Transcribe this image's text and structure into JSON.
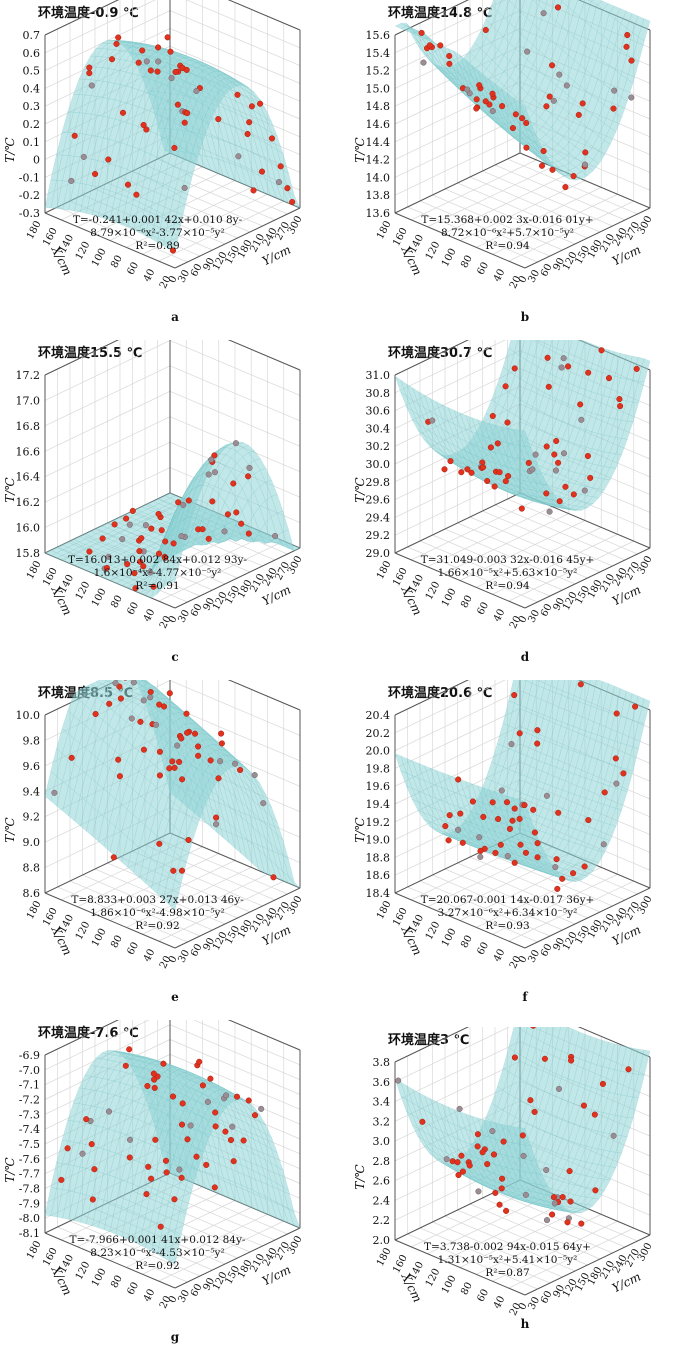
{
  "figure": {
    "axis_labels": {
      "z": "T/℃",
      "x": "X/cm",
      "y": "Y/cm"
    },
    "x_ticks": [
      "20",
      "40",
      "60",
      "80",
      "100",
      "120",
      "140",
      "160",
      "180"
    ],
    "y_ticks": [
      "0",
      "30",
      "60",
      "90",
      "120",
      "150",
      "180",
      "210",
      "240",
      "270",
      "300"
    ],
    "surface_color": "#8fd3d6",
    "point_color": "#e0321e"
  },
  "chart_data": [
    {
      "panel": "a",
      "type": "scatter",
      "title": "环境温度-0.9 ℃",
      "zlabel": "T/℃",
      "xlabel": "X/cm",
      "ylabel": "Y/cm",
      "zlim": [
        -0.3,
        0.7
      ],
      "xlim": [
        20,
        180
      ],
      "ylim": [
        0,
        300
      ],
      "z_ticks": [
        "0.7",
        "0.6",
        "0.5",
        "0.4",
        "0.3",
        "0.2",
        "0.1",
        "0",
        "-0.1",
        "-0.2",
        "-0.3"
      ],
      "shape": "dome",
      "equation_line1": "T=-0.241+0.001 42x+0.010 8y-",
      "equation_line2": "8.79×10⁻⁶x²-3.77×10⁻⁵y²",
      "r2": "R²=0.89",
      "sublabel": "a",
      "coefficients": {
        "c0": -0.241,
        "cx": 0.00142,
        "cy": 0.0108,
        "cx2": -8.79e-06,
        "cy2": -3.77e-05
      }
    },
    {
      "panel": "b",
      "type": "scatter",
      "title": "环境温度14.8 ℃",
      "zlabel": "T/℃",
      "xlabel": "X/cm",
      "ylabel": "Y/cm",
      "zlim": [
        13.6,
        15.6
      ],
      "xlim": [
        20,
        180
      ],
      "ylim": [
        0,
        300
      ],
      "z_ticks": [
        "15.6",
        "15.4",
        "15.2",
        "15.0",
        "14.8",
        "14.6",
        "14.4",
        "14.2",
        "14.0",
        "13.8",
        "13.6"
      ],
      "shape": "bowl",
      "equation_line1": "T=15.368+0.002 3x-0.016 01y+",
      "equation_line2": "8.72×10⁻⁶x²+5.7×10⁻⁵y²",
      "r2": "R²=0.94",
      "sublabel": "b",
      "coefficients": {
        "c0": 15.368,
        "cx": 0.0023,
        "cy": -0.01601,
        "cx2": 8.72e-06,
        "cy2": 5.7e-05
      }
    },
    {
      "panel": "c",
      "type": "scatter",
      "title": "环境温度15.5 ℃",
      "zlabel": "T/℃",
      "xlabel": "X/cm",
      "ylabel": "Y/cm",
      "zlim": [
        15.8,
        17.2
      ],
      "xlim": [
        20,
        180
      ],
      "ylim": [
        0,
        300
      ],
      "z_ticks": [
        "17.2",
        "17.0",
        "16.8",
        "16.6",
        "16.4",
        "16.2",
        "16.0",
        "15.8"
      ],
      "shape": "dome",
      "equation_line1": "T=16.013+0.002 84x+0.012 93y-",
      "equation_line2": "1.6×10⁻⁴x²-4.77×10⁻⁵y²",
      "r2": "R²=0.91",
      "sublabel": "c",
      "coefficients": {
        "c0": 16.013,
        "cx": 0.00284,
        "cy": 0.01293,
        "cx2": -0.00016,
        "cy2": -4.77e-05
      }
    },
    {
      "panel": "d",
      "type": "scatter",
      "title": "环境温度30.7 ℃",
      "zlabel": "T/℃",
      "xlabel": "X/cm",
      "ylabel": "Y/cm",
      "zlim": [
        29.0,
        31.0
      ],
      "xlim": [
        20,
        180
      ],
      "ylim": [
        0,
        300
      ],
      "z_ticks": [
        "31.0",
        "30.8",
        "30.6",
        "30.4",
        "30.2",
        "30.0",
        "29.8",
        "29.6",
        "29.4",
        "29.2",
        "29.0"
      ],
      "shape": "bowl",
      "equation_line1": "T=31.049-0.003 32x-0.016 45y+",
      "equation_line2": "1.66×10⁻⁵x²+5.63×10⁻⁵y²",
      "r2": "R²=0.94",
      "sublabel": "d",
      "coefficients": {
        "c0": 31.049,
        "cx": -0.00332,
        "cy": -0.01645,
        "cx2": 1.66e-05,
        "cy2": 5.63e-05
      }
    },
    {
      "panel": "e",
      "type": "scatter",
      "title": "环境温度8.5 ℃",
      "zlabel": "T/℃",
      "xlabel": "X/cm",
      "ylabel": "Y/cm",
      "zlim": [
        8.6,
        10.0
      ],
      "xlim": [
        20,
        180
      ],
      "ylim": [
        0,
        300
      ],
      "z_ticks": [
        "10.0",
        "9.8",
        "9.6",
        "9.4",
        "9.2",
        "9.0",
        "8.8",
        "8.6"
      ],
      "shape": "dome",
      "equation_line1": "T=8.833+0.003 27x+0.013 46y-",
      "equation_line2": "1.86×10⁻⁶x²-4.98×10⁻⁵y²",
      "r2": "R²=0.92",
      "sublabel": "e",
      "coefficients": {
        "c0": 8.833,
        "cx": 0.00327,
        "cy": 0.01346,
        "cx2": -1.86e-06,
        "cy2": -4.98e-05
      }
    },
    {
      "panel": "f",
      "type": "scatter",
      "title": "环境温度20.6 ℃",
      "zlabel": "T/℃",
      "xlabel": "X/cm",
      "ylabel": "Y/cm",
      "zlim": [
        18.4,
        20.4
      ],
      "xlim": [
        20,
        180
      ],
      "ylim": [
        0,
        300
      ],
      "z_ticks": [
        "20.4",
        "20.2",
        "20.0",
        "19.8",
        "19.6",
        "19.4",
        "19.2",
        "19.0",
        "18.8",
        "18.6",
        "18.4"
      ],
      "shape": "bowl",
      "equation_line1": "T=20.067-0.001 14x-0.017 36y+",
      "equation_line2": "3.27×10⁻⁶x²+6.34×10⁻⁵y²",
      "r2": "R²=0.93",
      "sublabel": "f",
      "coefficients": {
        "c0": 20.067,
        "cx": -0.00114,
        "cy": -0.01736,
        "cx2": 3.27e-06,
        "cy2": 6.34e-05
      }
    },
    {
      "panel": "g",
      "type": "scatter",
      "title": "环境温度-7.6 ℃",
      "zlabel": "T/℃",
      "xlabel": "X/cm",
      "ylabel": "Y/cm",
      "zlim": [
        -8.1,
        -6.9
      ],
      "xlim": [
        20,
        180
      ],
      "ylim": [
        0,
        300
      ],
      "z_ticks": [
        "-6.9",
        "-7.0",
        "-7.1",
        "-7.2",
        "-7.3",
        "-7.4",
        "-7.5",
        "-7.6",
        "-7.7",
        "-7.8",
        "-7.9",
        "-8.0",
        "-8.1"
      ],
      "shape": "dome",
      "equation_line1": "T=-7.966+0.001 41x+0.012 84y-",
      "equation_line2": "8.23×10⁻⁶x²-4.53×10⁻⁵y²",
      "r2": "R²=0.92",
      "sublabel": "g",
      "coefficients": {
        "c0": -7.966,
        "cx": 0.00141,
        "cy": 0.01284,
        "cx2": -8.23e-06,
        "cy2": -4.53e-05
      }
    },
    {
      "panel": "h",
      "type": "scatter",
      "title": "环境温度3 ℃",
      "zlabel": "T/℃",
      "xlabel": "X/cm",
      "ylabel": "Y/cm",
      "zlim": [
        2.0,
        3.8
      ],
      "xlim": [
        20,
        180
      ],
      "ylim": [
        0,
        300
      ],
      "z_ticks": [
        "3.8",
        "3.6",
        "3.4",
        "3.2",
        "3.0",
        "2.8",
        "2.6",
        "2.4",
        "2.2",
        "2.0"
      ],
      "shape": "bowl",
      "equation_line1": "T=3.738-0.002 94x-0.015 64y+",
      "equation_line2": "1.31×10⁻⁵x²+5.41×10⁻⁵y²",
      "r2": "R²=0.87",
      "sublabel": "h",
      "coefficients": {
        "c0": 3.738,
        "cx": -0.00294,
        "cy": -0.01564,
        "cx2": 1.31e-05,
        "cy2": 5.41e-05
      }
    }
  ]
}
